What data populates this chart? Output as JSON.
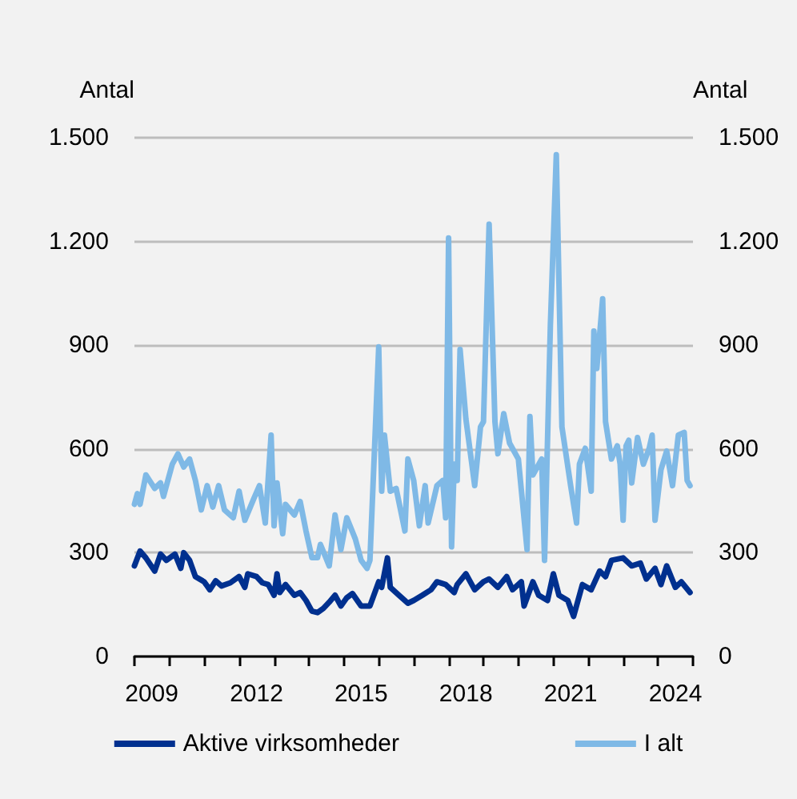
{
  "chart_data": {
    "type": "line",
    "ylabel": "Antal",
    "y2label": "Antal",
    "xlim": [
      "2009",
      "2025"
    ],
    "xticks": [
      {
        "value": "2009",
        "label": null
      },
      {
        "value": "2010",
        "label": null
      },
      {
        "value": "2011",
        "label": null
      },
      {
        "value": "2012",
        "label": null
      },
      {
        "value": "2013",
        "label": null
      },
      {
        "value": "2014",
        "label": null
      },
      {
        "value": "2015",
        "label": null
      },
      {
        "value": "2016",
        "label": null
      },
      {
        "value": "2017",
        "label": null
      },
      {
        "value": "2018",
        "label": null
      },
      {
        "value": "2019",
        "label": null
      },
      {
        "value": "2020",
        "label": null
      },
      {
        "value": "2021",
        "label": null
      },
      {
        "value": "2022",
        "label": null
      },
      {
        "value": "2023",
        "label": null
      },
      {
        "value": "2024",
        "label": null
      },
      {
        "value": "2025",
        "label": null
      },
      {
        "value": "2009-07",
        "label": "2009"
      },
      {
        "value": "2012-07",
        "label": "2012"
      },
      {
        "value": "2015-07",
        "label": "2015"
      },
      {
        "value": "2018-07",
        "label": "2018"
      },
      {
        "value": "2021-07",
        "label": "2021"
      },
      {
        "value": "2024-07",
        "label": "2024"
      }
    ],
    "ylim": [
      0,
      1500
    ],
    "yticks": [
      0,
      300,
      600,
      900,
      {
        "value": 1200,
        "label": "1.200"
      },
      {
        "value": 1500,
        "label": "1.500"
      }
    ],
    "y2lim": [
      0,
      1500
    ],
    "y2ticks": [
      0,
      300,
      600,
      900,
      {
        "value": 1200,
        "label": "1.200"
      },
      {
        "value": 1500,
        "label": "1.500"
      }
    ],
    "grid": "y",
    "legend": "bottom",
    "marker": "none",
    "series": [
      {
        "name": "Aktive virksomheder",
        "color": "#00308f",
        "x": [
          "2009-01",
          "2009-03",
          "2009-05",
          "2009-08",
          "2009-10",
          "2009-12",
          "2010-03",
          "2010-05",
          "2010-06",
          "2010-08",
          "2010-10",
          "2011-01",
          "2011-03",
          "2011-05",
          "2011-07",
          "2011-10",
          "2012-01",
          "2012-03",
          "2012-04",
          "2012-07",
          "2012-09",
          "2012-11",
          "2013-01",
          "2013-02",
          "2013-03",
          "2013-05",
          "2013-08",
          "2013-10",
          "2013-12",
          "2014-02",
          "2014-04",
          "2014-06",
          "2014-08",
          "2014-10",
          "2014-12",
          "2015-02",
          "2015-04",
          "2015-07",
          "2015-10",
          "2016-01",
          "2016-02",
          "2016-04",
          "2016-05",
          "2016-08",
          "2016-11",
          "2017-01",
          "2017-04",
          "2017-07",
          "2017-09",
          "2017-12",
          "2018-03",
          "2018-04",
          "2018-07",
          "2018-10",
          "2019-01",
          "2019-03",
          "2019-06",
          "2019-09",
          "2019-11",
          "2020-02",
          "2020-03",
          "2020-06",
          "2020-08",
          "2020-11",
          "2021-01",
          "2021-03",
          "2021-06",
          "2021-08",
          "2021-11",
          "2022-02",
          "2022-05",
          "2022-07",
          "2022-09",
          "2023-01",
          "2023-04",
          "2023-07",
          "2023-09",
          "2023-12",
          "2024-02",
          "2024-04",
          "2024-07",
          "2024-09",
          "2024-12"
        ],
        "values": [
          262,
          305,
          285,
          247,
          296,
          278,
          296,
          255,
          300,
          278,
          231,
          216,
          193,
          219,
          204,
          213,
          231,
          200,
          239,
          231,
          213,
          208,
          177,
          239,
          185,
          208,
          177,
          185,
          162,
          131,
          127,
          139,
          157,
          177,
          146,
          170,
          182,
          146,
          146,
          216,
          200,
          285,
          200,
          177,
          154,
          162,
          177,
          193,
          216,
          208,
          185,
          208,
          239,
          193,
          216,
          224,
          200,
          231,
          193,
          216,
          146,
          216,
          177,
          162,
          239,
          177,
          162,
          116,
          208,
          193,
          247,
          231,
          278,
          285,
          262,
          270,
          224,
          255,
          208,
          262,
          200,
          216,
          185
        ]
      },
      {
        "name": "I alt",
        "color": "#7fb9e6",
        "x": [
          "2009-01",
          "2009-02",
          "2009-03",
          "2009-05",
          "2009-08",
          "2009-10",
          "2009-11",
          "2010-02",
          "2010-04",
          "2010-06",
          "2010-08",
          "2010-10",
          "2010-12",
          "2011-02",
          "2011-04",
          "2011-06",
          "2011-08",
          "2011-11",
          "2012-01",
          "2012-03",
          "2012-06",
          "2012-08",
          "2012-10",
          "2012-12",
          "2013-01",
          "2013-02",
          "2013-04",
          "2013-05",
          "2013-08",
          "2013-10",
          "2013-12",
          "2014-02",
          "2014-04",
          "2014-05",
          "2014-08",
          "2014-10",
          "2014-12",
          "2015-02",
          "2015-05",
          "2015-07",
          "2015-09",
          "2015-10",
          "2016-01",
          "2016-02",
          "2016-03",
          "2016-05",
          "2016-07",
          "2016-10",
          "2016-11",
          "2017-01",
          "2017-03",
          "2017-05",
          "2017-06",
          "2017-09",
          "2017-11",
          "2017-12",
          "2018-01",
          "2018-02",
          "2018-03",
          "2018-04",
          "2018-05",
          "2018-07",
          "2018-10",
          "2018-12",
          "2019-01",
          "2019-03",
          "2019-05",
          "2019-06",
          "2019-08",
          "2019-10",
          "2020-01",
          "2020-04",
          "2020-05",
          "2020-06",
          "2020-09",
          "2020-10",
          "2020-12",
          "2021-02",
          "2021-04",
          "2021-07",
          "2021-09",
          "2021-10",
          "2021-12",
          "2022-02",
          "2022-03",
          "2022-04",
          "2022-06",
          "2022-07",
          "2022-09",
          "2022-11",
          "2022-12",
          "2023-01",
          "2023-02",
          "2023-03",
          "2023-04",
          "2023-06",
          "2023-08",
          "2023-10",
          "2023-11",
          "2023-12",
          "2024-02",
          "2024-04",
          "2024-06",
          "2024-08",
          "2024-10",
          "2024-11",
          "2024-12"
        ],
        "values": [
          440,
          471,
          440,
          525,
          486,
          502,
          463,
          556,
          586,
          548,
          571,
          509,
          424,
          494,
          432,
          494,
          424,
          401,
          478,
          394,
          455,
          494,
          386,
          640,
          378,
          502,
          355,
          440,
          409,
          448,
          363,
          286,
          286,
          324,
          262,
          409,
          309,
          401,
          340,
          278,
          255,
          278,
          895,
          478,
          640,
          478,
          486,
          363,
          571,
          509,
          378,
          494,
          386,
          494,
          509,
          401,
          1210,
          317,
          556,
          509,
          888,
          687,
          494,
          664,
          679,
          1250,
          679,
          586,
          702,
          617,
          571,
          309,
          694,
          525,
          571,
          278,
          957,
          1451,
          664,
          494,
          386,
          556,
          602,
          478,
          941,
          833,
          1034,
          679,
          571,
          609,
          556,
          394,
          609,
          625,
          502,
          633,
          556,
          602,
          640,
          394,
          540,
          594,
          494,
          640,
          648,
          509,
          494
        ]
      }
    ]
  }
}
